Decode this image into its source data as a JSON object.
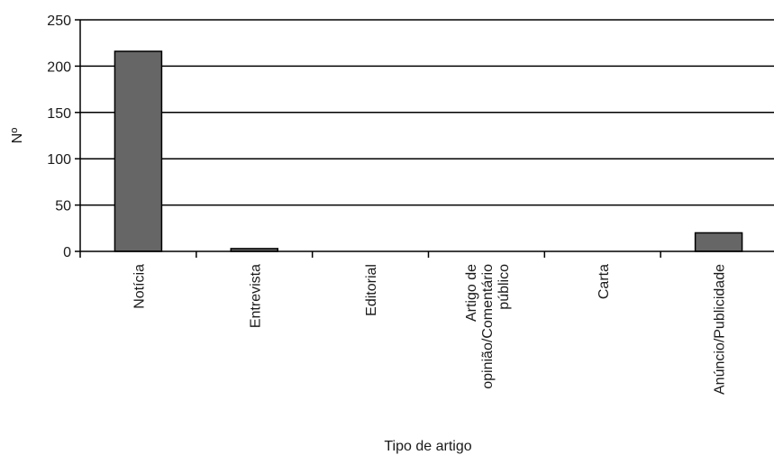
{
  "chart_data": {
    "type": "bar",
    "title": "",
    "xlabel": "Tipo de artigo",
    "ylabel": "Nº",
    "ylim": [
      0,
      250
    ],
    "yticks": [
      0,
      50,
      100,
      150,
      200,
      250
    ],
    "grid": true,
    "legend": "none",
    "categories": [
      [
        "Notícia"
      ],
      [
        "Entrevista"
      ],
      [
        "Editorial"
      ],
      [
        "Artigo de",
        "opinião/Comentário",
        "público"
      ],
      [
        "Carta"
      ],
      [
        "Anúncio/Publicidade"
      ]
    ],
    "series": [
      {
        "values": [
          216,
          3,
          0,
          0,
          0,
          20
        ]
      }
    ],
    "colors": {
      "bar": "#666666",
      "grid": "#000000",
      "axis": "#000000"
    }
  }
}
